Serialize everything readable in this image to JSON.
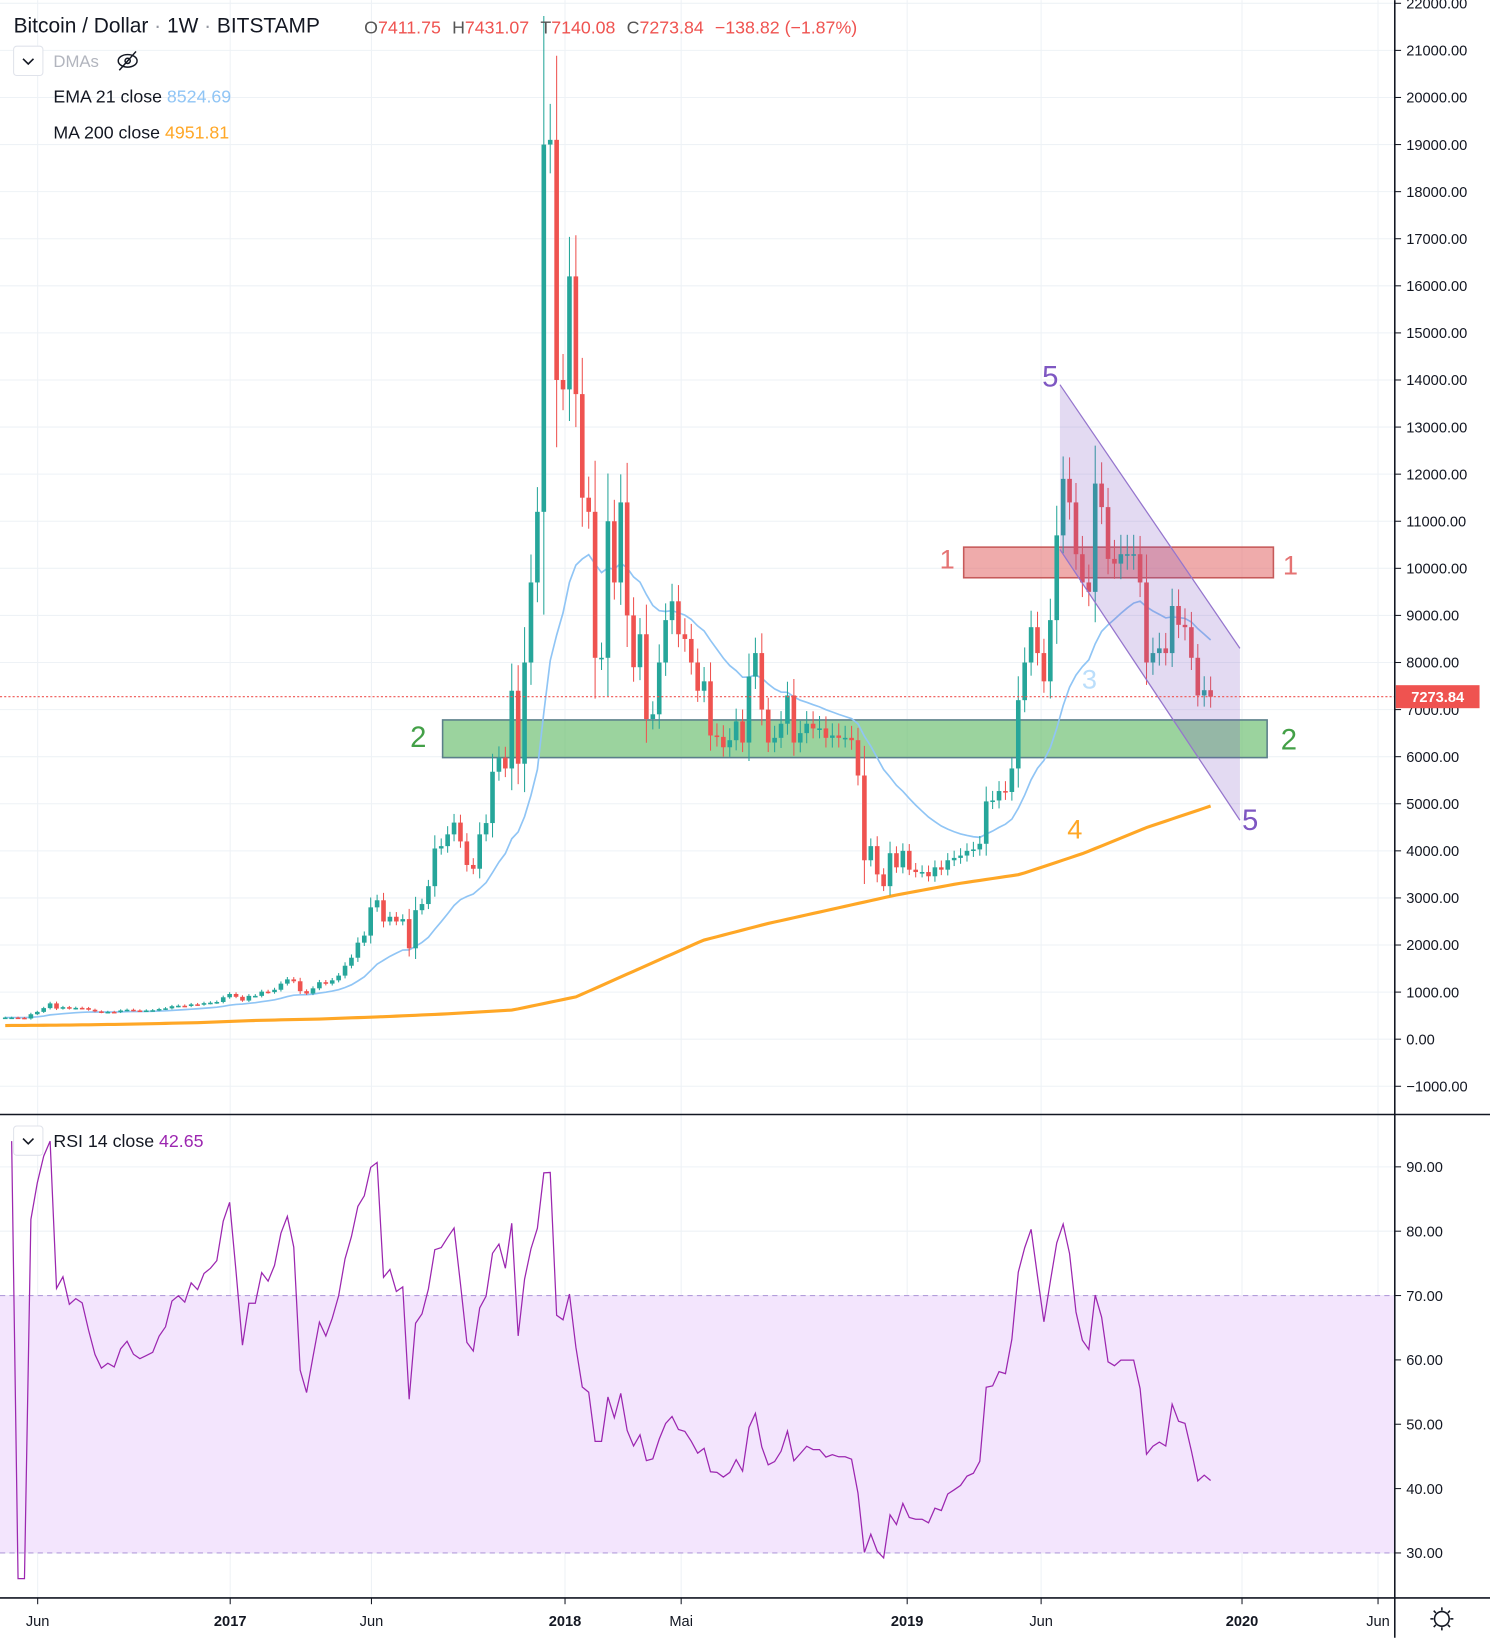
{
  "header": {
    "symbol": "Bitcoin / Dollar",
    "interval": "1W",
    "exchange": "BITSTAMP",
    "open_label": "O",
    "open": "7411.75",
    "high_label": "H",
    "high": "7431.07",
    "low_label": "T",
    "low": "7140.08",
    "close_label": "C",
    "close": "7273.84",
    "change": "−138.82 (−1.87%)"
  },
  "indicators": {
    "group_label": "DMAs",
    "ema": {
      "label": "EMA 21 close",
      "value": "8524.69",
      "color": "#90c5f5"
    },
    "ma": {
      "label": "MA 200 close",
      "value": "4951.81",
      "color": "#ffa726"
    },
    "rsi": {
      "label": "RSI 14 close",
      "value": "42.65",
      "color": "#9c27b0"
    }
  },
  "colors": {
    "up": "#26a69a",
    "down": "#ef5350",
    "rsi_band": "#f3e5fd"
  },
  "price_label": "7273.84",
  "annotations": {
    "zone1_left": "1",
    "zone1_right": "1",
    "zone2_left": "2",
    "zone2_right": "2",
    "wave3": "3",
    "wave4": "4",
    "wave5_top": "5",
    "wave5_bottom": "5"
  },
  "time_axis": [
    "Jun",
    "2017",
    "Jun",
    "2018",
    "Mai",
    "2019",
    "Jun",
    "2020",
    "Jun"
  ],
  "price_axis": [
    "22000.00",
    "21000.00",
    "20000.00",
    "19000.00",
    "18000.00",
    "17000.00",
    "16000.00",
    "15000.00",
    "14000.00",
    "13000.00",
    "12000.00",
    "11000.00",
    "10000.00",
    "9000.00",
    "8000.00",
    "7000.00",
    "6000.00",
    "5000.00",
    "4000.00",
    "3000.00",
    "2000.00",
    "1000.00",
    "0.00",
    "−1000.00"
  ],
  "rsi_axis": [
    "90.00",
    "80.00",
    "70.00",
    "60.00",
    "50.00",
    "40.00",
    "30.00"
  ],
  "chart_data": {
    "type": "candlestick",
    "title": "Bitcoin / Dollar · 1W · BITSTAMP",
    "ylim": [
      -1000,
      22000
    ],
    "closes": [
      460,
      460,
      455,
      440,
      530,
      580,
      660,
      760,
      650,
      680,
      650,
      665,
      660,
      625,
      590,
      570,
      580,
      575,
      610,
      625,
      610,
      605,
      610,
      615,
      640,
      655,
      700,
      710,
      705,
      740,
      735,
      765,
      775,
      790,
      890,
      960,
      900,
      820,
      920,
      920,
      1010,
      1000,
      1050,
      1180,
      1270,
      1230,
      1020,
      970,
      1080,
      1210,
      1180,
      1250,
      1350,
      1560,
      1730,
      2050,
      2200,
      2800,
      2950,
      2500,
      2600,
      2500,
      2550,
      1930,
      2740,
      2870,
      3250,
      4050,
      4100,
      4350,
      4600,
      4200,
      3700,
      3620,
      4350,
      4590,
      5680,
      5980,
      5750,
      7400,
      5850,
      8000,
      9700,
      11200,
      19000,
      19100,
      14000,
      13800,
      16200,
      13700,
      11500,
      11200,
      8100,
      8100,
      11000,
      9700,
      11400,
      9000,
      7900,
      8600,
      6800,
      6900,
      8000,
      8900,
      9300,
      8600,
      8500,
      8000,
      7400,
      7600,
      6450,
      6420,
      6200,
      6350,
      6750,
      6300,
      7700,
      8200,
      7000,
      6300,
      6400,
      6700,
      7300,
      6300,
      6500,
      6700,
      6600,
      6600,
      6400,
      6450,
      6400,
      6400,
      6350,
      5600,
      3800,
      4100,
      3500,
      3250,
      3950,
      3650,
      4000,
      3600,
      3550,
      3550,
      3460,
      3650,
      3600,
      3800,
      3850,
      3900,
      4000,
      4030,
      4150,
      5050,
      5070,
      5270,
      5250,
      5750,
      7200,
      8000,
      8750,
      8200,
      7600,
      8900,
      10700,
      11900,
      11400,
      10300,
      9700,
      9500,
      11800,
      11300,
      10200,
      10100,
      10300,
      10300,
      10300,
      9700,
      8000,
      8200,
      8300,
      8200,
      9200,
      8800,
      8750,
      8100,
      7300,
      7411.75,
      7273.84
    ],
    "ma200_samples": [
      290,
      300,
      320,
      350,
      400,
      430,
      480,
      540,
      620,
      900,
      1500,
      2100,
      2450,
      2750,
      3050,
      3300,
      3500,
      3950,
      4500,
      4951.81
    ],
    "zones": [
      {
        "name": "1",
        "from": 9800,
        "to": 10450
      },
      {
        "name": "2",
        "from": 5980,
        "to": 6780
      }
    ],
    "channel": {
      "upper": [
        13900,
        8300
      ],
      "lower": [
        10400,
        4650
      ]
    },
    "rsi_levels": {
      "upper": 70,
      "lower": 30
    },
    "rsi_ylim": [
      25,
      95
    ]
  }
}
